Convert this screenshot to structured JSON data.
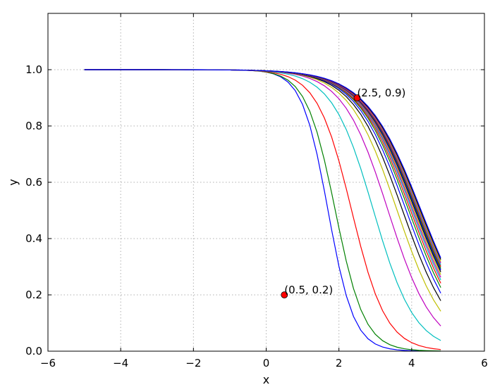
{
  "chart_data": {
    "type": "line",
    "title": "",
    "xlabel": "x",
    "ylabel": "y",
    "xlim": [
      -6,
      6
    ],
    "ylim": [
      0.0,
      1.2
    ],
    "xticks": [
      -6,
      -4,
      -2,
      0,
      2,
      4,
      6
    ],
    "xtick_labels": [
      "−6",
      "−4",
      "−2",
      "0",
      "2",
      "4",
      "6"
    ],
    "yticks": [
      0.0,
      0.2,
      0.4,
      0.6,
      0.8,
      1.0
    ],
    "ytick_labels": [
      "0.0",
      "0.2",
      "0.4",
      "0.6",
      "0.8",
      "1.0"
    ],
    "grid": true,
    "x_range": [
      -5.0,
      4.8
    ],
    "curve_family": "sigmoid_decay",
    "series": [
      {
        "color": "#0000ff",
        "midpoint": 1.7,
        "steepness": 2.8
      },
      {
        "color": "#008000",
        "midpoint": 1.9,
        "steepness": 2.5
      },
      {
        "color": "#ff0000",
        "midpoint": 2.35,
        "steepness": 2.1
      },
      {
        "color": "#00bfbf",
        "midpoint": 2.95,
        "steepness": 1.75
      },
      {
        "color": "#bf00bf",
        "midpoint": 3.35,
        "steepness": 1.6
      },
      {
        "color": "#bfbf00",
        "midpoint": 3.6,
        "steepness": 1.5
      },
      {
        "color": "#000000",
        "midpoint": 3.75,
        "steepness": 1.45
      },
      {
        "color": "#0000ff",
        "midpoint": 3.85,
        "steepness": 1.42
      },
      {
        "color": "#008000",
        "midpoint": 3.92,
        "steepness": 1.4
      },
      {
        "color": "#ff0000",
        "midpoint": 3.97,
        "steepness": 1.38
      },
      {
        "color": "#00bfbf",
        "midpoint": 4.01,
        "steepness": 1.37
      },
      {
        "color": "#bf00bf",
        "midpoint": 4.04,
        "steepness": 1.36
      },
      {
        "color": "#bfbf00",
        "midpoint": 4.07,
        "steepness": 1.35
      },
      {
        "color": "#000000",
        "midpoint": 4.1,
        "steepness": 1.34
      },
      {
        "color": "#0000ff",
        "midpoint": 4.12,
        "steepness": 1.33
      },
      {
        "color": "#008000",
        "midpoint": 4.14,
        "steepness": 1.33
      },
      {
        "color": "#ff0000",
        "midpoint": 4.16,
        "steepness": 1.32
      },
      {
        "color": "#00bfbf",
        "midpoint": 4.18,
        "steepness": 1.32
      },
      {
        "color": "#bf00bf",
        "midpoint": 4.2,
        "steepness": 1.31
      },
      {
        "color": "#bfbf00",
        "midpoint": 4.22,
        "steepness": 1.31
      },
      {
        "color": "#000000",
        "midpoint": 4.24,
        "steepness": 1.3
      },
      {
        "color": "#0000ff",
        "midpoint": 4.26,
        "steepness": 1.3
      }
    ],
    "annotations": [
      {
        "x": 2.5,
        "y": 0.9,
        "text": "(2.5, 0.9)",
        "marker_color": "#ff0000"
      },
      {
        "x": 0.5,
        "y": 0.2,
        "text": "(0.5, 0.2)",
        "marker_color": "#ff0000"
      }
    ]
  }
}
